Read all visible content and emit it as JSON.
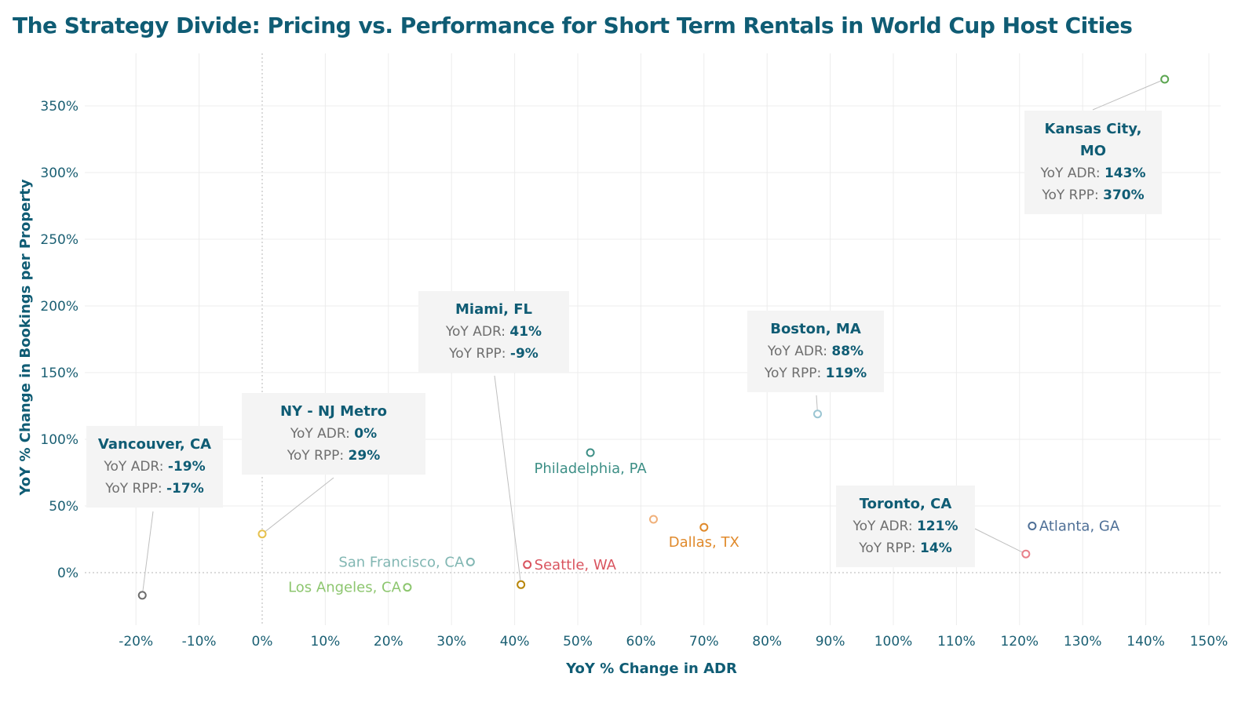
{
  "page": {
    "title": "The Strategy Divide: Pricing vs. Performance for Short Term Rentals in World Cup Host Cities"
  },
  "chart_data": {
    "type": "scatter",
    "title": "The Strategy Divide: Pricing vs. Performance for Short Term Rentals in World Cup Host Cities",
    "xlabel": "YoY % Change in ADR",
    "ylabel": "YoY % Change in Bookings per Property",
    "xlim": [
      -28,
      153
    ],
    "ylim": [
      -40,
      385
    ],
    "x_ticks": [
      -20,
      -10,
      0,
      10,
      20,
      30,
      40,
      50,
      60,
      70,
      80,
      90,
      100,
      110,
      120,
      130,
      140,
      150
    ],
    "y_ticks": [
      0,
      50,
      100,
      150,
      200,
      250,
      300,
      350
    ],
    "tick_suffix": "%",
    "points": [
      {
        "id": "vancouver",
        "name": "Vancouver, CA",
        "x": -19,
        "y": -17,
        "color": "#6d6d6d",
        "adr_label": "-19%",
        "rpp_label": "-17%",
        "card": true
      },
      {
        "id": "ny-nj",
        "name": "NY - NJ Metro",
        "x": 0,
        "y": 29,
        "color": "#e6c14e",
        "adr_label": "0%",
        "rpp_label": "29%",
        "card": true
      },
      {
        "id": "miami",
        "name": "Miami, FL",
        "x": 41,
        "y": -9,
        "color": "#b8860b",
        "adr_label": "41%",
        "rpp_label": "-9%",
        "card": true
      },
      {
        "id": "boston",
        "name": "Boston, MA",
        "x": 88,
        "y": 119,
        "color": "#9cc6d3",
        "adr_label": "88%",
        "rpp_label": "119%",
        "card": true
      },
      {
        "id": "toronto",
        "name": "Toronto, CA",
        "x": 121,
        "y": 14,
        "color": "#e8808a",
        "adr_label": "121%",
        "rpp_label": "14%",
        "card": true
      },
      {
        "id": "kansas-city",
        "name": "Kansas City, MO",
        "name_line1": "Kansas City,",
        "name_line2": "MO",
        "x": 143,
        "y": 370,
        "color": "#5aa54f",
        "adr_label": "143%",
        "rpp_label": "370%",
        "card": true
      },
      {
        "id": "philadelphia",
        "name": "Philadelphia, PA",
        "x": 52,
        "y": 90,
        "color": "#3d8f86",
        "card": false
      },
      {
        "id": "san-francisco",
        "name": "San Francisco, CA",
        "x": 33,
        "y": 8,
        "color": "#82b7b3",
        "card": false
      },
      {
        "id": "los-angeles",
        "name": "Los Angeles, CA",
        "x": 23,
        "y": -11,
        "color": "#8dc66f",
        "card": false
      },
      {
        "id": "seattle",
        "name": "Seattle, WA",
        "x": 42,
        "y": 6,
        "color": "#d9545f",
        "card": false
      },
      {
        "id": "dallas",
        "name": "Dallas, TX",
        "x": 70,
        "y": 34,
        "color": "#e08a2c",
        "card": false
      },
      {
        "id": "houston",
        "name": "",
        "x": 62,
        "y": 40,
        "color": "#f0b07a",
        "card": false
      },
      {
        "id": "atlanta",
        "name": "Atlanta, GA",
        "x": 122,
        "y": 35,
        "color": "#4e6f96",
        "card": false
      }
    ]
  },
  "cards": {
    "adr_prefix": "YoY ADR:",
    "rpp_prefix": "YoY RPP:"
  }
}
